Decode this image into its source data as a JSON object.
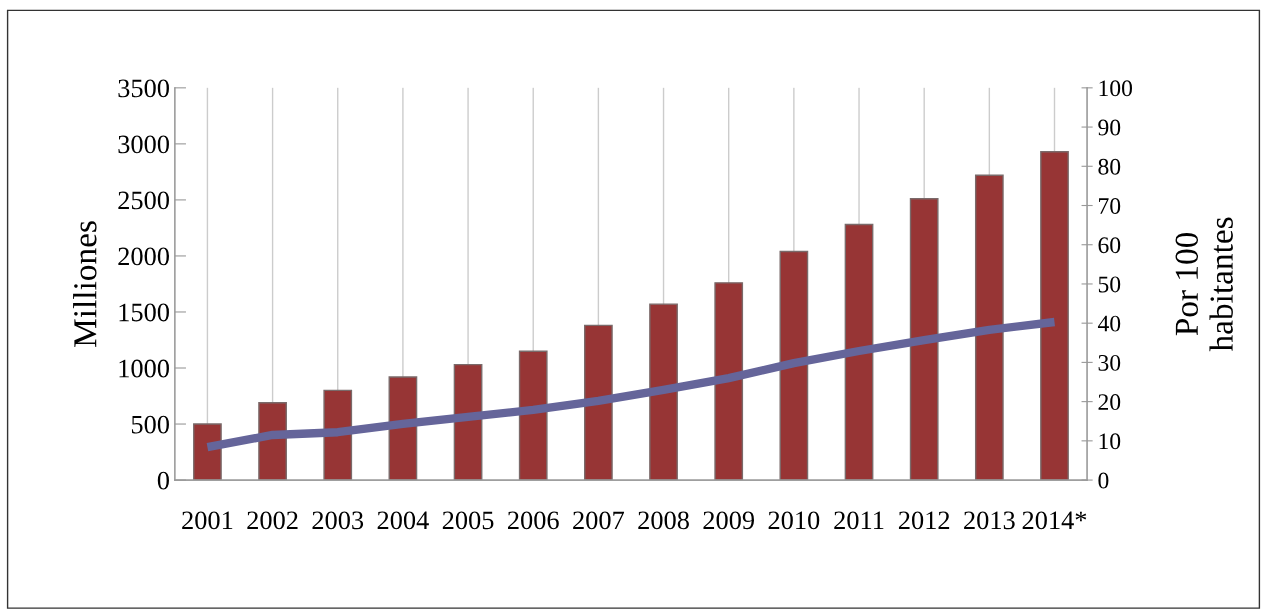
{
  "chart_data": {
    "type": "bar",
    "categories": [
      "2001",
      "2002",
      "2003",
      "2004",
      "2005",
      "2006",
      "2007",
      "2008",
      "2009",
      "2010",
      "2011",
      "2012",
      "2013",
      "2014*"
    ],
    "ylabel": "Milliones",
    "y2label": "Por 100\nhabitantes",
    "ylim": [
      0,
      3500
    ],
    "yticks": [
      0,
      500,
      1000,
      1500,
      2000,
      2500,
      3000,
      3500
    ],
    "y2lim": [
      0,
      100
    ],
    "y2ticks": [
      0,
      10,
      20,
      30,
      40,
      50,
      60,
      70,
      80,
      90,
      100
    ],
    "grid": "x",
    "series": [
      {
        "color": "#973535",
        "values": [
          500,
          690,
          800,
          920,
          1030,
          1150,
          1380,
          1570,
          1760,
          2040,
          2280,
          2510,
          2720,
          2930
        ]
      },
      {
        "type": "line",
        "axis": "y2",
        "color": "#65659a",
        "values": [
          8.4,
          11.5,
          12.2,
          14.3,
          16.1,
          17.9,
          20.2,
          23.0,
          26.0,
          29.8,
          32.9,
          35.7,
          38.3,
          40.3
        ]
      }
    ]
  }
}
